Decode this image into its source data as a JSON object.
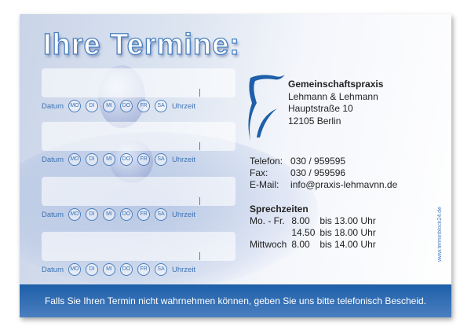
{
  "title": "Ihre Termine:",
  "appointment_row": {
    "date_label": "Datum",
    "days": [
      "MO",
      "DI",
      "MI",
      "DO",
      "FR",
      "SA"
    ],
    "time_label": "Uhrzeit"
  },
  "practice": {
    "name": "Gemeinschaftspraxis",
    "names": "Lehmann & Lehmann",
    "street": "Hauptstraße 10",
    "city": "12105 Berlin"
  },
  "contact": [
    {
      "label": "Telefon:",
      "value": "030 / 959595"
    },
    {
      "label": "Fax:",
      "value": "030 / 959596"
    },
    {
      "label": "E-Mail:",
      "value": "info@praxis-lehmavnn.de"
    }
  ],
  "hours": {
    "heading": "Sprechzeiten",
    "rows": [
      {
        "day": "Mo. - Fr.",
        "from": "8.00",
        "to": "bis 13.00 Uhr"
      },
      {
        "day": "",
        "from": "14.50",
        "to": "bis 18.00 Uhr"
      },
      {
        "day": "Mittwoch",
        "from": "8.00",
        "to": "bis 14.00 Uhr"
      }
    ]
  },
  "url": "www.terminblock24.de",
  "footer": "Falls Sie Ihren Termin nicht wahrnehmen können, geben Sie uns bitte telefonisch Bescheid.",
  "colors": {
    "accent": "#3d72b5",
    "footer": "#1d5fa8"
  }
}
